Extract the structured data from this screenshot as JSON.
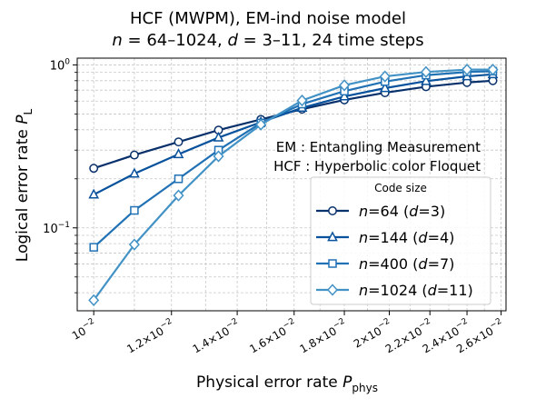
{
  "chart_data": {
    "type": "line",
    "title_line1": "HCF (MWPM), EM-ind noise model",
    "title_line2_parts": [
      "n",
      " = 64–1024, ",
      "d",
      " = 3–11, 24 time steps"
    ],
    "xlabel": "Physical error rate",
    "xlabel_sub": "phys",
    "xlabel_sym": "P",
    "ylabel": "Logical error rate",
    "ylabel_sym": "P",
    "ylabel_sub": "L",
    "xscale": "log",
    "yscale": "log",
    "xlim": [
      0.00962,
      0.0263
    ],
    "ylim": [
      0.031,
      1.1
    ],
    "grid": true,
    "x_ticks": [
      {
        "value": 0.01,
        "mant": "",
        "exp": "−2"
      },
      {
        "value": 0.012,
        "mant": "1.2×",
        "exp": "−2"
      },
      {
        "value": 0.014,
        "mant": "1.4×",
        "exp": "−2"
      },
      {
        "value": 0.016,
        "mant": "1.6×",
        "exp": "−2"
      },
      {
        "value": 0.018,
        "mant": "1.8×",
        "exp": "−2"
      },
      {
        "value": 0.02,
        "mant": "2×",
        "exp": "−2"
      },
      {
        "value": 0.022,
        "mant": "2.2×",
        "exp": "−2"
      },
      {
        "value": 0.024,
        "mant": "2.4×",
        "exp": "−2"
      },
      {
        "value": 0.026,
        "mant": "2.6×",
        "exp": "−2"
      }
    ],
    "y_ticks": [
      {
        "value": 1,
        "exp": "0"
      },
      {
        "value": 0.1,
        "exp": "−1"
      }
    ],
    "x": [
      0.01,
      0.011,
      0.0122,
      0.0134,
      0.0148,
      0.0163,
      0.018,
      0.0198,
      0.0218,
      0.024,
      0.0255
    ],
    "series": [
      {
        "name_n": "64",
        "name_d": "3",
        "color": "#08306b",
        "marker": "circle",
        "values": [
          0.232,
          0.28,
          0.337,
          0.398,
          0.463,
          0.535,
          0.61,
          0.675,
          0.735,
          0.78,
          0.8
        ]
      },
      {
        "name_n": "144",
        "name_d": "4",
        "color": "#08519c",
        "marker": "triangle",
        "values": [
          0.16,
          0.215,
          0.283,
          0.358,
          0.445,
          0.545,
          0.64,
          0.72,
          0.795,
          0.85,
          0.875
        ]
      },
      {
        "name_n": "400",
        "name_d": "7",
        "color": "#2171b5",
        "marker": "square",
        "values": [
          0.076,
          0.128,
          0.2,
          0.3,
          0.44,
          0.575,
          0.69,
          0.79,
          0.865,
          0.905,
          0.915
        ]
      },
      {
        "name_n": "1024",
        "name_d": "11",
        "color": "#4292c6",
        "marker": "diamond",
        "values": [
          0.036,
          0.079,
          0.158,
          0.275,
          0.43,
          0.605,
          0.75,
          0.85,
          0.905,
          0.935,
          0.935
        ]
      }
    ],
    "legend": {
      "title": "Code size",
      "placement": "lower-right"
    },
    "annotations": [
      "EM : Entangling Measurement",
      "HCF : Hyperbolic color Floquet"
    ]
  }
}
